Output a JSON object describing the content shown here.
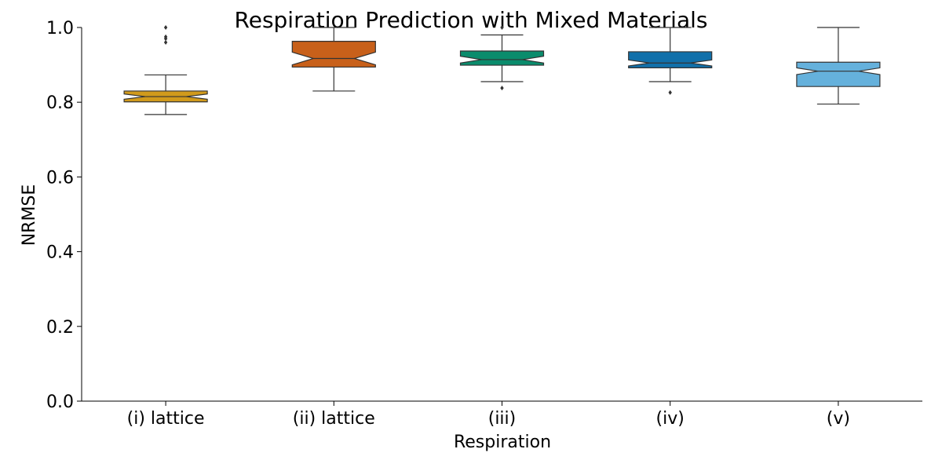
{
  "chart_data": {
    "type": "boxplot",
    "title": "Respiration Prediction with Mixed Materials",
    "xlabel": "Respiration",
    "ylabel": "NRMSE",
    "ylim": [
      0,
      1.0
    ],
    "yticks": [
      "0.0",
      "0.2",
      "0.4",
      "0.6",
      "0.8",
      "1.0"
    ],
    "ytick_values": [
      0,
      0.2,
      0.4,
      0.6,
      0.8,
      1.0
    ],
    "grid": false,
    "notched": true,
    "categories": [
      "(i) lattice",
      "(ii) lattice",
      "(iii)",
      "(iv)",
      "(v)"
    ],
    "boxes": [
      {
        "category": "(i) lattice",
        "color": "#d19a1c",
        "whisker_low": 0.767,
        "q1": 0.801,
        "median": 0.815,
        "q3": 0.83,
        "whisker_high": 0.873,
        "notch_low": 0.808,
        "notch_high": 0.822,
        "outliers": [
          0.96,
          0.97,
          0.975,
          1.0
        ]
      },
      {
        "category": "(ii) lattice",
        "color": "#c8601a",
        "whisker_low": 0.83,
        "q1": 0.894,
        "median": 0.917,
        "q3": 0.963,
        "whisker_high": 1.0,
        "notch_low": 0.9,
        "notch_high": 0.934,
        "outliers": []
      },
      {
        "category": "(iii)",
        "color": "#0a8c6c",
        "whisker_low": 0.855,
        "q1": 0.899,
        "median": 0.914,
        "q3": 0.937,
        "whisker_high": 0.98,
        "notch_low": 0.905,
        "notch_high": 0.923,
        "outliers": [
          0.838,
          1.0
        ]
      },
      {
        "category": "(iv)",
        "color": "#1170aa",
        "whisker_low": 0.855,
        "q1": 0.892,
        "median": 0.905,
        "q3": 0.935,
        "whisker_high": 1.0,
        "notch_low": 0.897,
        "notch_high": 0.913,
        "outliers": [
          0.826
        ]
      },
      {
        "category": "(v)",
        "color": "#65b1dc",
        "whisker_low": 0.795,
        "q1": 0.842,
        "median": 0.883,
        "q3": 0.907,
        "whisker_high": 1.0,
        "notch_low": 0.874,
        "notch_high": 0.892,
        "outliers": []
      }
    ]
  }
}
